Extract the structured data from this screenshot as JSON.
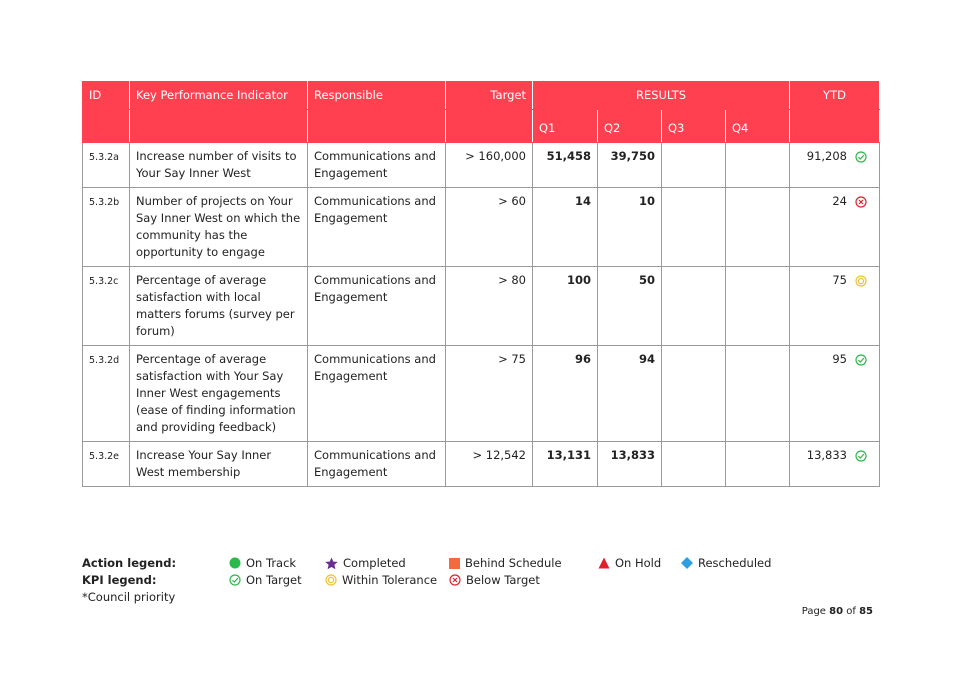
{
  "table": {
    "header": {
      "id": "ID",
      "kpi": "Key Performance Indicator",
      "responsible": "Responsible",
      "target": "Target",
      "results": "RESULTS",
      "ytd": "YTD",
      "q1": "Q1",
      "q2": "Q2",
      "q3": "Q3",
      "q4": "Q4"
    },
    "rows": [
      {
        "id": "5.3.2a",
        "kpi": "Increase number of visits to Your Say Inner West",
        "responsible": "Communications and Engagement",
        "target": "> 160,000",
        "q1": "51,458",
        "q2": "39,750",
        "ytd": "91,208"
      },
      {
        "id": "5.3.2b",
        "kpi": "Number of projects on Your Say Inner West on which the community has the opportunity to engage",
        "responsible": "Communications and Engagement",
        "target": "> 60",
        "q1": "14",
        "q2": "10",
        "ytd": "24"
      },
      {
        "id": "5.3.2c",
        "kpi": "Percentage of average satisfaction with local matters forums (survey per forum)",
        "responsible": "Communications and Engagement",
        "target": "> 80",
        "q1": "100",
        "q2": "50",
        "ytd": "75"
      },
      {
        "id": "5.3.2d",
        "kpi": "Percentage of average satisfaction with Your Say Inner West engagements (ease of finding information and providing feedback)",
        "responsible": "Communications and Engagement",
        "target": "> 75",
        "q1": "96",
        "q2": "94",
        "ytd": "95"
      },
      {
        "id": "5.3.2e",
        "kpi": "Increase Your Say Inner West membership",
        "responsible": "Communications and Engagement",
        "target": "> 12,542",
        "q1": "13,131",
        "q2": "13,833",
        "ytd": "13,833"
      }
    ]
  },
  "legend": {
    "action_title": "Action legend:",
    "action_items": [
      "On Track",
      "Completed",
      "Behind Schedule",
      "On Hold",
      "Rescheduled"
    ],
    "kpi_title": "KPI legend:",
    "kpi_items": [
      "On Target",
      "Within Tolerance",
      "Below Target"
    ],
    "note": "*Council priority"
  },
  "footer": {
    "prefix": "Page",
    "page": "80",
    "of": "of",
    "total": "85"
  }
}
